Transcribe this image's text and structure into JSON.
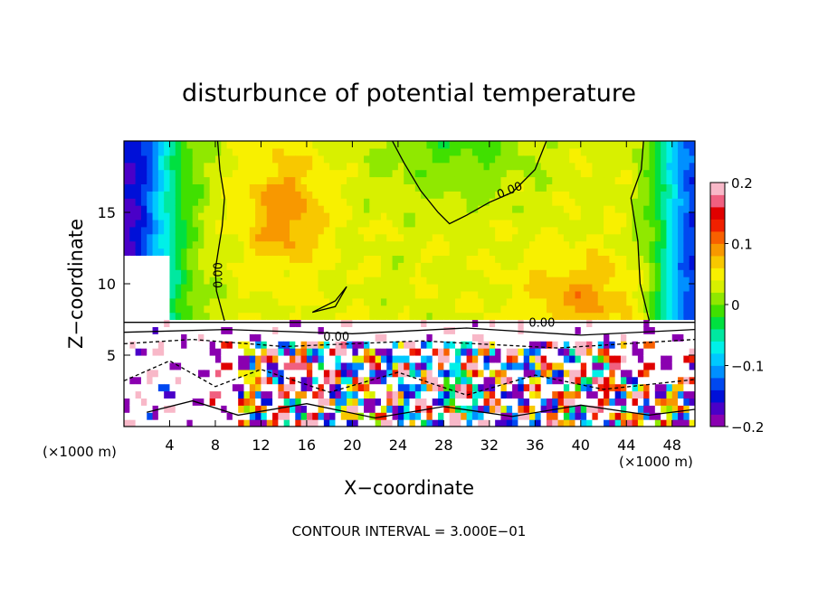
{
  "chart_data": {
    "type": "heatmap",
    "title": "disturbunce of potential temperature",
    "xlabel": "X−coordinate",
    "ylabel": "Z−coordinate",
    "x_unit_left": "(×1000 m)",
    "x_unit_right": "(×1000 m)",
    "xlim": [
      0,
      50
    ],
    "ylim": [
      0,
      20
    ],
    "x_ticks": [
      4,
      8,
      12,
      16,
      20,
      24,
      28,
      32,
      36,
      40,
      44,
      48
    ],
    "x_tick_labels": [
      "4",
      "8",
      "12",
      "16",
      "20",
      "24",
      "28",
      "32",
      "36",
      "40",
      "44",
      "48"
    ],
    "y_ticks": [
      5,
      10,
      15
    ],
    "y_tick_labels": [
      "5",
      "10",
      "15"
    ],
    "colorbar": {
      "min": -0.2,
      "max": 0.2,
      "ticks": [
        0.2,
        0.1,
        0,
        -0.1,
        -0.2
      ],
      "tick_labels": [
        "0.2",
        "0.1",
        "0",
        "−0.1",
        "−0.2"
      ],
      "colors": [
        "#8a00b0",
        "#4a00c8",
        "#0010d8",
        "#0048f0",
        "#0090ff",
        "#00c8ff",
        "#00f0e8",
        "#00e8a0",
        "#00e040",
        "#40e000",
        "#90e800",
        "#d8f000",
        "#f8f000",
        "#f8c800",
        "#f89800",
        "#f86000",
        "#f02000",
        "#e00000",
        "#f06080",
        "#f8b8c8"
      ]
    },
    "contour_labels": [
      "0.00",
      "0.00",
      "0.00",
      "0.00"
    ],
    "footer": "CONTOUR INTERVAL = 3.000E−01"
  }
}
